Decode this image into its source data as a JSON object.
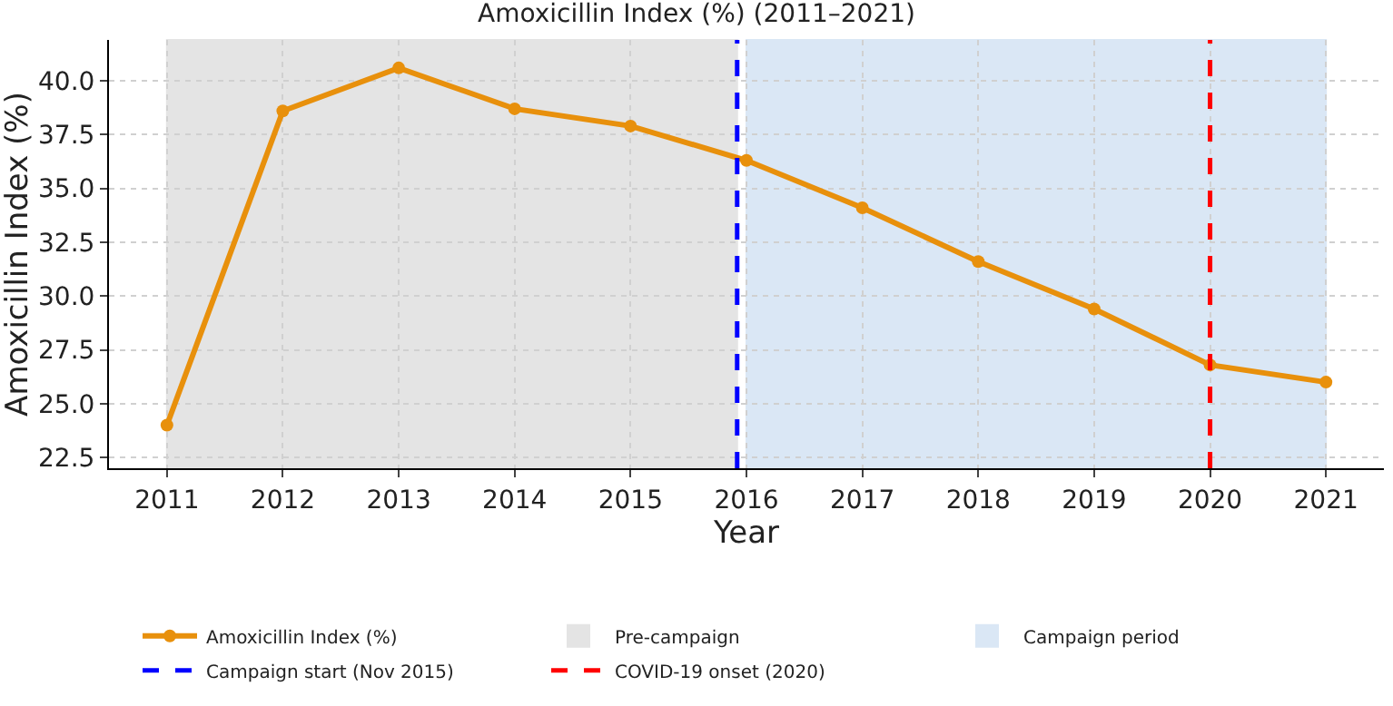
{
  "chart_data": {
    "type": "line",
    "title": "Amoxicillin Index (%) (2011–2021)",
    "xlabel": "Year",
    "ylabel": "Amoxicillin Index (%)",
    "x": [
      2011,
      2012,
      2013,
      2014,
      2015,
      2016,
      2017,
      2018,
      2019,
      2020,
      2021
    ],
    "series": [
      {
        "name": "Amoxicillin Index (%)",
        "color": "#e8900c",
        "values": [
          24.0,
          38.6,
          40.6,
          38.7,
          37.9,
          36.3,
          34.1,
          31.6,
          29.4,
          26.8,
          26.0
        ]
      }
    ],
    "xlim": [
      2010.5,
      2021.5
    ],
    "ylim": [
      22.0,
      41.9
    ],
    "xticks": [
      2011,
      2012,
      2013,
      2014,
      2015,
      2016,
      2017,
      2018,
      2019,
      2020,
      2021
    ],
    "yticks": [
      {
        "value": 22.5,
        "label": "22.5"
      },
      {
        "value": 25,
        "label": "25.0"
      },
      {
        "value": 27.5,
        "label": "27.5"
      },
      {
        "value": 30,
        "label": "30.0"
      },
      {
        "value": 32.5,
        "label": "32.5"
      },
      {
        "value": 35,
        "label": "35.0"
      },
      {
        "value": 37.5,
        "label": "37.5"
      },
      {
        "value": 40,
        "label": "40.0"
      }
    ],
    "bands": [
      {
        "axis": "x",
        "from": 2011,
        "to": 2015.92,
        "label": "Pre-campaign",
        "color": "#e4e4e4"
      },
      {
        "axis": "x",
        "from": 2016,
        "to": 2021,
        "label": "Campaign period",
        "color": "#dae7f5"
      }
    ],
    "ref_lines": [
      {
        "axis": "x",
        "value": 2015.92,
        "label": "Campaign start (Nov 2015)",
        "color": "#0000ff",
        "line_style": "dashed"
      },
      {
        "axis": "x",
        "value": 2020,
        "label": "COVID-19 onset (2020)",
        "color": "#ff0000",
        "line_style": "dashed"
      }
    ],
    "grid": true,
    "legend": "bottom",
    "marker": "circle",
    "line_style": "solid"
  }
}
